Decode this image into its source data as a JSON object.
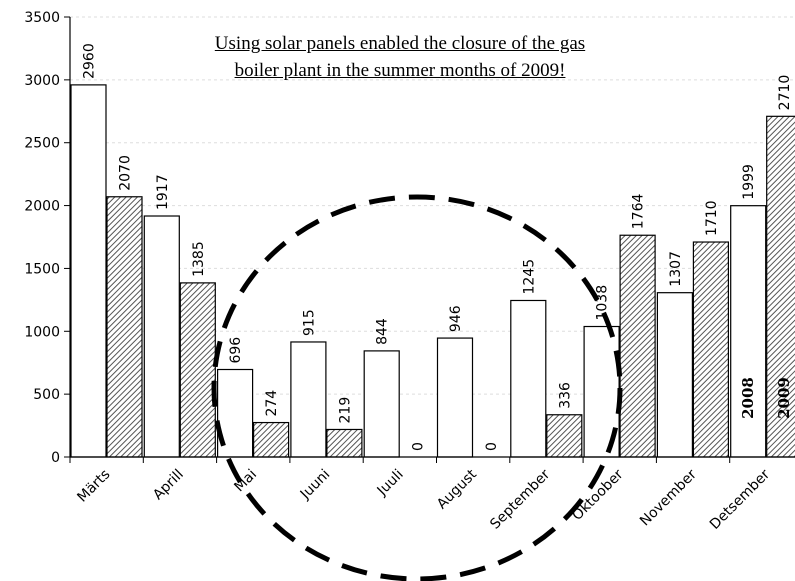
{
  "chart_data": {
    "type": "bar",
    "categories": [
      "Märts",
      "Aprill",
      "Mai",
      "Juuni",
      "Juuli",
      "August",
      "September",
      "Oktoober",
      "November",
      "Detsember"
    ],
    "series": [
      {
        "name": "2008",
        "values": [
          2960,
          1917,
          696,
          915,
          844,
          946,
          1245,
          1038,
          1307,
          1999
        ],
        "fill": "white"
      },
      {
        "name": "2009",
        "values": [
          2070,
          1385,
          274,
          219,
          0,
          0,
          336,
          1764,
          1710,
          2710
        ],
        "fill": "hatched"
      }
    ],
    "ylim": [
      0,
      3500
    ],
    "yticks": [
      0,
      500,
      1000,
      1500,
      2000,
      2500,
      3000,
      3500
    ],
    "title": "",
    "xlabel": "",
    "ylabel": "",
    "annotation": {
      "line1": "Using solar panels enabled the closure of the gas",
      "line2": "boiler plant in the summer months of 2009!"
    },
    "highlight": "dashed circle around summer months",
    "colors": {
      "bar_stroke": "#000000",
      "bar_fill": "#ffffff",
      "hatch": "#555555",
      "grid": "#dddddd"
    }
  }
}
